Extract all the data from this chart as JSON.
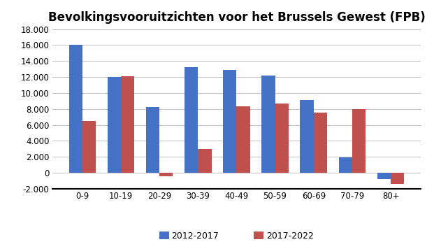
{
  "title": "Bevolkingsvooruitzichten voor het Brussels Gewest (FPB)",
  "categories": [
    "0-9",
    "10-19",
    "20-29",
    "30-39",
    "40-49",
    "50-59",
    "60-69",
    "70-79",
    "80+"
  ],
  "series": {
    "2012-2017": [
      16000,
      12000,
      8200,
      13200,
      12900,
      12200,
      9100,
      1900,
      -800
    ],
    "2017-2022": [
      6500,
      12100,
      -400,
      3000,
      8300,
      8700,
      7500,
      8000,
      -1400
    ]
  },
  "bar_colors": {
    "2012-2017": "#4472C4",
    "2017-2022": "#C0504D"
  },
  "ylim": [
    -2000,
    18000
  ],
  "yticks": [
    -2000,
    0,
    2000,
    4000,
    6000,
    8000,
    10000,
    12000,
    14000,
    16000,
    18000
  ],
  "ytick_labels": [
    "-2.000",
    "0",
    "2.000",
    "4.000",
    "6.000",
    "8.000",
    "10.000",
    "12.000",
    "14.000",
    "16.000",
    "18.000"
  ],
  "legend_labels": [
    "2012-2017",
    "2017-2022"
  ],
  "background_color": "#FFFFFF",
  "grid_color": "#C0C0C0",
  "bar_width": 0.35,
  "title_fontsize": 12,
  "tick_fontsize": 8.5
}
